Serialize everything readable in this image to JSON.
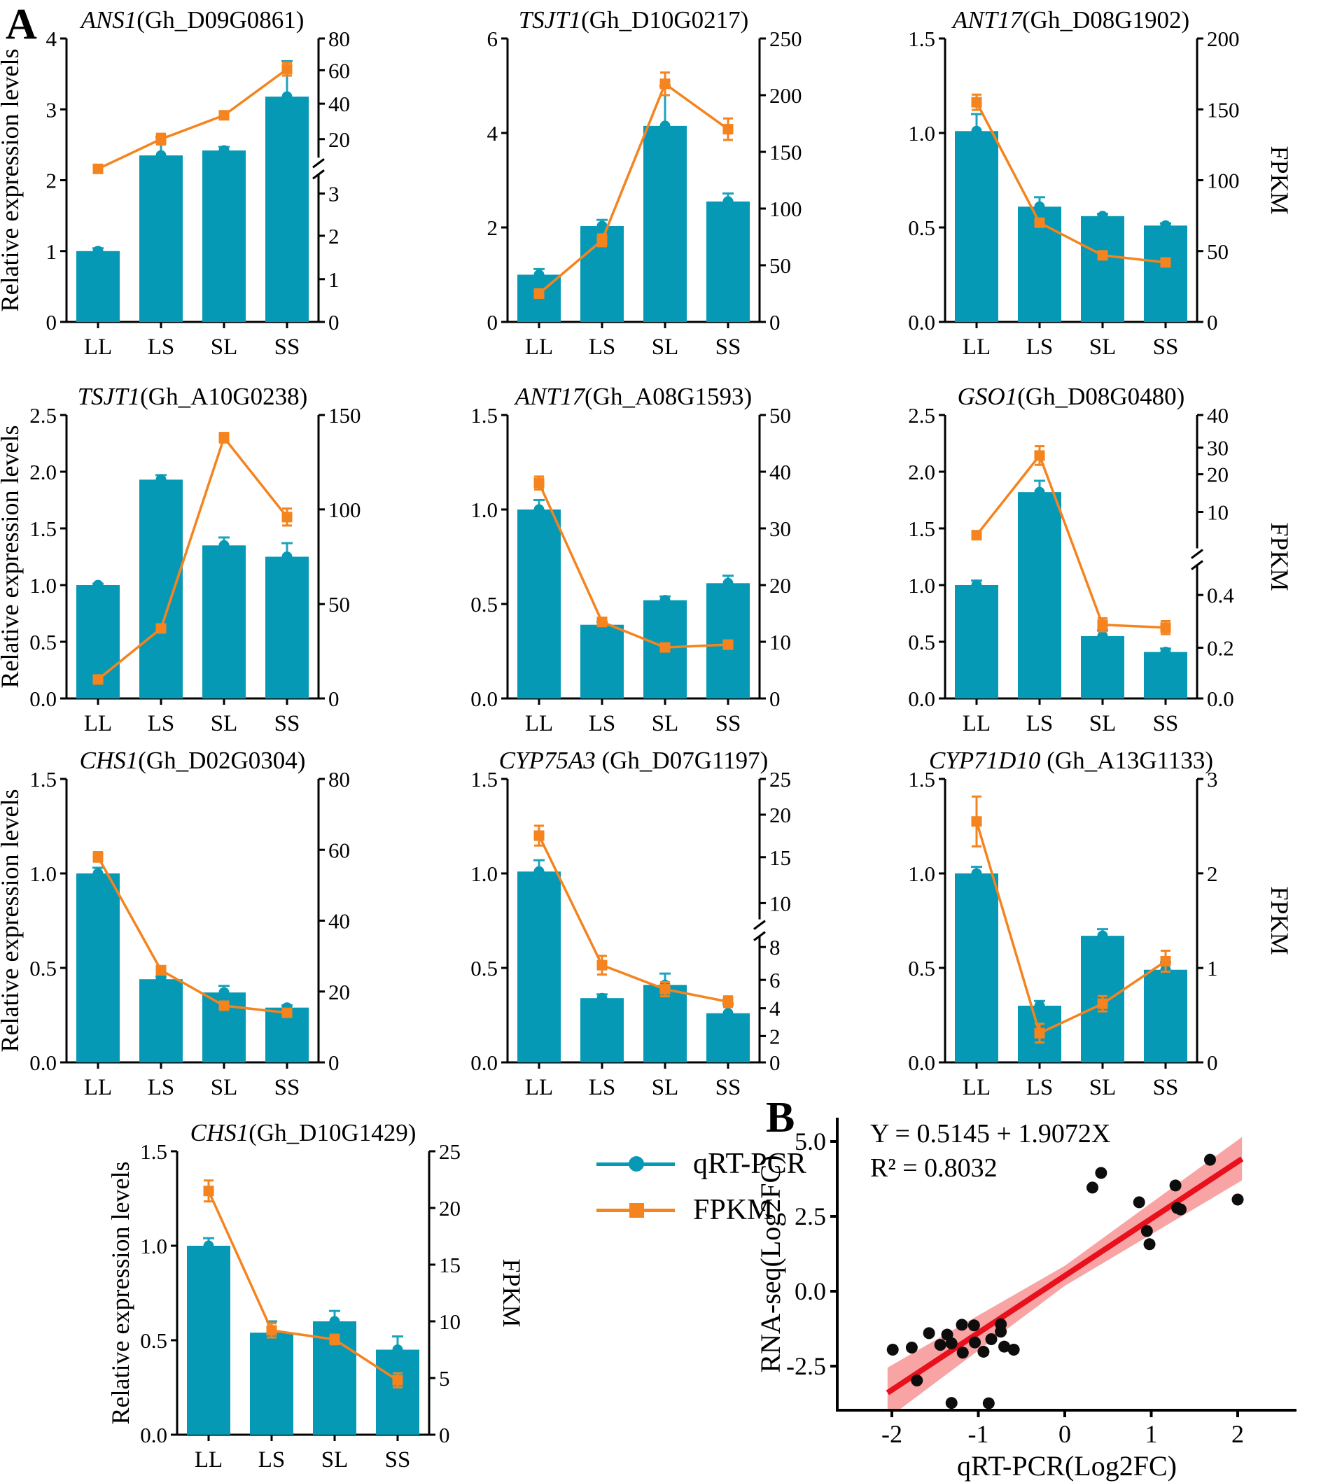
{
  "panel_a_label": "A",
  "panel_b_label": "B",
  "colors": {
    "bar": "#0699B5",
    "bar_error": "#1BA3BC",
    "line": "#F5831E",
    "regression_line": "#E8101C",
    "confidence_band": "#F8A4A4",
    "scatter_dot": "#0d0d0d",
    "axis": "#000000"
  },
  "x_categories": [
    "LL",
    "LS",
    "SL",
    "SS"
  ],
  "axis_labels": {
    "left": "Relative expression levels",
    "right": "FPKM"
  },
  "legend": {
    "qrt_label": "qRT-PCR",
    "fpkm_label": "FPKM"
  },
  "chart_data": [
    {
      "type": "bar-line",
      "id": "ans1-gh-d09g0861",
      "gene": "ANS1",
      "locus": "(Gh_D09G0861)",
      "space": false,
      "show_left_label": true,
      "show_right_label": false,
      "left_axis": {
        "ticks": [
          "0",
          "1",
          "2",
          "3",
          "4"
        ],
        "max": 4
      },
      "right_axis": {
        "ticks": [
          [
            "0",
            0
          ],
          [
            "1",
            0.151
          ],
          [
            "2",
            0.304
          ],
          [
            "3",
            0.453
          ],
          [
            "20",
            0.645
          ],
          [
            "40",
            0.77
          ],
          [
            "60",
            0.888
          ],
          [
            "80",
            1.0
          ]
        ],
        "break_frac": 0.55
      },
      "bars": [
        1.0,
        2.35,
        2.42,
        3.18
      ],
      "bar_errors": [
        0.04,
        0.26,
        0.05,
        0.5
      ],
      "fpkm": [
        10,
        20,
        33,
        60
      ],
      "fpkm_fracs": [
        0.54,
        0.645,
        0.729,
        0.892
      ],
      "fpkm_err_fracs": [
        0.008,
        0.014,
        0.008,
        0.018
      ]
    },
    {
      "type": "bar-line",
      "id": "tsjt1-gh-d10g0217",
      "gene": "TSJT1",
      "locus": "(Gh_D10G0217)",
      "space": false,
      "show_left_label": false,
      "show_right_label": false,
      "left_axis": {
        "ticks": [
          "0",
          "2",
          "4",
          "6"
        ],
        "max": 6
      },
      "right_axis": {
        "ticks": [
          [
            "0",
            0
          ],
          [
            "50",
            0.2
          ],
          [
            "100",
            0.4
          ],
          [
            "150",
            0.6
          ],
          [
            "200",
            0.8
          ],
          [
            "250",
            1.0
          ]
        ],
        "break_frac": null
      },
      "bars": [
        1.0,
        2.03,
        4.15,
        2.55
      ],
      "bar_errors": [
        0.12,
        0.13,
        0.85,
        0.17
      ],
      "fpkm": [
        25,
        72,
        210,
        170
      ],
      "fpkm_fracs": [
        0.1,
        0.288,
        0.84,
        0.68
      ],
      "fpkm_err_fracs": [
        0.01,
        0.016,
        0.035,
        0.033
      ]
    },
    {
      "type": "bar-line",
      "id": "ant17-gh-d08g1902",
      "gene": "ANT17",
      "locus": "(Gh_D08G1902)",
      "space": false,
      "show_left_label": false,
      "show_right_label": true,
      "left_axis": {
        "ticks": [
          "0.0",
          "0.5",
          "1.0",
          "1.5"
        ],
        "max": 1.5
      },
      "right_axis": {
        "ticks": [
          [
            "0",
            0
          ],
          [
            "50",
            0.25
          ],
          [
            "100",
            0.5
          ],
          [
            "150",
            0.75
          ],
          [
            "200",
            1.0
          ]
        ],
        "break_frac": null
      },
      "bars": [
        1.01,
        0.61,
        0.56,
        0.51
      ],
      "bar_errors": [
        0.09,
        0.05,
        0.012,
        0.012
      ],
      "fpkm": [
        155,
        70,
        47,
        42
      ],
      "fpkm_fracs": [
        0.775,
        0.35,
        0.235,
        0.21
      ],
      "fpkm_err_fracs": [
        0.022,
        0.008,
        0.006,
        0.006
      ]
    },
    {
      "type": "bar-line",
      "id": "tsjt1-gh-a10g0238",
      "gene": "TSJT1",
      "locus": "(Gh_A10G0238)",
      "space": false,
      "show_left_label": true,
      "show_right_label": false,
      "left_axis": {
        "ticks": [
          "0.0",
          "0.5",
          "1.0",
          "1.5",
          "2.0",
          "2.5"
        ],
        "max": 2.5
      },
      "right_axis": {
        "ticks": [
          [
            "0",
            0
          ],
          [
            "50",
            0.333
          ],
          [
            "100",
            0.667
          ],
          [
            "150",
            1.0
          ]
        ],
        "break_frac": null
      },
      "bars": [
        1.0,
        1.93,
        1.35,
        1.25
      ],
      "bar_errors": [
        0.012,
        0.04,
        0.07,
        0.12
      ],
      "fpkm": [
        10,
        37,
        138,
        96
      ],
      "fpkm_fracs": [
        0.067,
        0.247,
        0.92,
        0.64
      ],
      "fpkm_err_fracs": [
        0.008,
        0.008,
        0.012,
        0.025
      ]
    },
    {
      "type": "bar-line",
      "id": "ant17-gh-a08g1593",
      "gene": "ANT17",
      "locus": "(Gh_A08G1593)",
      "space": false,
      "show_left_label": false,
      "show_right_label": false,
      "left_axis": {
        "ticks": [
          "0.0",
          "0.5",
          "1.0",
          "1.5"
        ],
        "max": 1.5
      },
      "right_axis": {
        "ticks": [
          [
            "0",
            0
          ],
          [
            "10",
            0.2
          ],
          [
            "20",
            0.4
          ],
          [
            "30",
            0.6
          ],
          [
            "40",
            0.8
          ],
          [
            "50",
            1.0
          ]
        ],
        "break_frac": null
      },
      "bars": [
        1.0,
        0.39,
        0.52,
        0.61
      ],
      "bar_errors": [
        0.05,
        0.015,
        0.02,
        0.04
      ],
      "fpkm": [
        38,
        13.5,
        9,
        9.5
      ],
      "fpkm_fracs": [
        0.76,
        0.27,
        0.18,
        0.19
      ],
      "fpkm_err_fracs": [
        0.018,
        0.01,
        0.006,
        0.008
      ]
    },
    {
      "type": "bar-line",
      "id": "gso1-gh-d08g0480",
      "gene": "GSO1",
      "locus": "(Gh_D08G0480)",
      "space": false,
      "show_left_label": false,
      "show_right_label": true,
      "left_axis": {
        "ticks": [
          "0.0",
          "0.5",
          "1.0",
          "1.5",
          "2.0",
          "2.5"
        ],
        "max": 2.5
      },
      "right_axis": {
        "ticks": [
          [
            "0.0",
            0
          ],
          [
            "0.2",
            0.179
          ],
          [
            "0.4",
            0.365
          ],
          [
            "10",
            0.658
          ],
          [
            "20",
            0.791
          ],
          [
            "30",
            0.885
          ],
          [
            "40",
            1.0
          ]
        ],
        "break_frac": 0.5
      },
      "bars": [
        1.0,
        1.82,
        0.55,
        0.41
      ],
      "bar_errors": [
        0.04,
        0.1,
        0.05,
        0.03
      ],
      "fpkm": [
        4,
        27,
        0.28,
        0.27
      ],
      "fpkm_fracs": [
        0.576,
        0.857,
        0.26,
        0.25
      ],
      "fpkm_err_fracs": [
        0.006,
        0.028,
        0.018,
        0.018
      ]
    },
    {
      "type": "bar-line",
      "id": "chs1-gh-d02g0304",
      "gene": "CHS1",
      "locus": "(Gh_D02G0304)",
      "space": false,
      "show_left_label": true,
      "show_right_label": false,
      "left_axis": {
        "ticks": [
          "0.0",
          "0.5",
          "1.0",
          "1.5"
        ],
        "max": 1.5
      },
      "right_axis": {
        "ticks": [
          [
            "0",
            0
          ],
          [
            "20",
            0.25
          ],
          [
            "40",
            0.5
          ],
          [
            "60",
            0.75
          ],
          [
            "80",
            1.0
          ]
        ],
        "break_frac": null
      },
      "bars": [
        1.0,
        0.44,
        0.37,
        0.29
      ],
      "bar_errors": [
        0.03,
        0.015,
        0.035,
        0.012
      ],
      "fpkm": [
        58,
        26,
        16,
        14
      ],
      "fpkm_fracs": [
        0.725,
        0.325,
        0.2,
        0.175
      ],
      "fpkm_err_fracs": [
        0.012,
        0.01,
        0.008,
        0.008
      ]
    },
    {
      "type": "bar-line",
      "id": "cyp75a3-gh-d07g1197",
      "gene": "CYP75A3",
      "locus": "(Gh_D07G1197)",
      "space": true,
      "show_left_label": false,
      "show_right_label": false,
      "left_axis": {
        "ticks": [
          "0.0",
          "0.5",
          "1.0",
          "1.5"
        ],
        "max": 1.5
      },
      "right_axis": {
        "ticks": [
          [
            "0",
            0
          ],
          [
            "2",
            0.093
          ],
          [
            "4",
            0.191
          ],
          [
            "6",
            0.291
          ],
          [
            "8",
            0.407
          ],
          [
            "10",
            0.562
          ],
          [
            "15",
            0.724
          ],
          [
            "20",
            0.874
          ],
          [
            "25",
            1.0
          ]
        ],
        "break_frac": 0.475
      },
      "bars": [
        1.01,
        0.34,
        0.41,
        0.26
      ],
      "bar_errors": [
        0.06,
        0.02,
        0.06,
        0.05
      ],
      "fpkm": [
        18.5,
        6.4,
        5.0,
        4.4
      ],
      "fpkm_fracs": [
        0.8,
        0.343,
        0.258,
        0.214
      ],
      "fpkm_err_fracs": [
        0.03,
        0.028,
        0.02,
        0.014
      ]
    },
    {
      "type": "bar-line",
      "id": "cyp71d10-gh-a13g1133",
      "gene": "CYP71D10",
      "locus": "(Gh_A13G1133)",
      "space": true,
      "show_left_label": false,
      "show_right_label": true,
      "left_axis": {
        "ticks": [
          "0.0",
          "0.5",
          "1.0",
          "1.5"
        ],
        "max": 1.5
      },
      "right_axis": {
        "ticks": [
          [
            "0",
            0
          ],
          [
            "1",
            0.333
          ],
          [
            "2",
            0.667
          ],
          [
            "3",
            1.0
          ]
        ],
        "break_frac": null
      },
      "bars": [
        1.0,
        0.3,
        0.67,
        0.49
      ],
      "bar_errors": [
        0.035,
        0.025,
        0.035,
        0.04
      ],
      "fpkm": [
        2.55,
        0.31,
        0.62,
        1.07
      ],
      "fpkm_fracs": [
        0.85,
        0.103,
        0.207,
        0.357
      ],
      "fpkm_err_fracs": [
        0.083,
        0.028,
        0.022,
        0.032
      ]
    },
    {
      "type": "bar-line",
      "id": "chs1-gh-d10g1429",
      "gene": "CHS1",
      "locus": "(Gh_D10G1429)",
      "space": false,
      "show_left_label": true,
      "show_right_label": true,
      "left_axis": {
        "ticks": [
          "0.0",
          "0.5",
          "1.0",
          "1.5"
        ],
        "max": 1.5
      },
      "right_axis": {
        "ticks": [
          [
            "0",
            0
          ],
          [
            "5",
            0.2
          ],
          [
            "10",
            0.4
          ],
          [
            "15",
            0.6
          ],
          [
            "20",
            0.8
          ],
          [
            "25",
            1.0
          ]
        ],
        "break_frac": null
      },
      "bars": [
        1.0,
        0.54,
        0.6,
        0.45
      ],
      "bar_errors": [
        0.04,
        0.06,
        0.055,
        0.07
      ],
      "fpkm": [
        21.5,
        9.2,
        8.4,
        4.8
      ],
      "fpkm_fracs": [
        0.86,
        0.368,
        0.336,
        0.192
      ],
      "fpkm_err_fracs": [
        0.032,
        0.02,
        0.012,
        0.02
      ]
    },
    {
      "type": "scatter",
      "id": "rna-seq-correlation",
      "xlabel": "qRT-PCR(Log2FC)",
      "ylabel": "RNA-seq(Log2FC)",
      "equation": "Y = 0.5145 + 1.9072X",
      "r_squared": "R² = 0.8032",
      "x_ticks": [
        [
          "-2",
          -2
        ],
        [
          "-1",
          -1
        ],
        [
          "0",
          0
        ],
        [
          "1",
          1
        ],
        [
          "2",
          2
        ]
      ],
      "y_ticks": [
        [
          "5.0",
          5.0
        ],
        [
          "2.5",
          2.5
        ],
        [
          "0.0",
          0.0
        ],
        [
          "-2.5",
          -2.5
        ]
      ],
      "xlim": [
        -2.3,
        2.35
      ],
      "ylim": [
        -4.0,
        5.8
      ],
      "regression": {
        "x1": -2.05,
        "y1": -3.39,
        "x2": 2.05,
        "y2": 4.42
      },
      "band": [
        [
          -2.05,
          -2.55
        ],
        [
          0,
          0.85
        ],
        [
          2.05,
          5.15
        ],
        [
          2.05,
          3.7
        ],
        [
          0,
          0.18
        ],
        [
          -2.05,
          -4.25
        ]
      ],
      "points": [
        [
          -1.99,
          -1.95
        ],
        [
          -1.77,
          -1.88
        ],
        [
          -1.71,
          -2.98
        ],
        [
          -1.57,
          -1.4
        ],
        [
          -1.44,
          -1.79
        ],
        [
          -1.36,
          -1.45
        ],
        [
          -1.31,
          -1.74
        ],
        [
          -1.31,
          -3.73
        ],
        [
          -1.19,
          -1.12
        ],
        [
          -1.18,
          -2.05
        ],
        [
          -1.05,
          -1.14
        ],
        [
          -1.04,
          -1.71
        ],
        [
          -0.94,
          -2.02
        ],
        [
          -0.88,
          -3.74
        ],
        [
          -0.85,
          -1.6
        ],
        [
          -0.74,
          -1.1
        ],
        [
          -0.74,
          -1.35
        ],
        [
          -0.7,
          -1.85
        ],
        [
          -0.59,
          -1.95
        ],
        [
          0.32,
          3.46
        ],
        [
          0.42,
          3.95
        ],
        [
          0.86,
          2.97
        ],
        [
          0.95,
          2.01
        ],
        [
          0.98,
          1.57
        ],
        [
          1.28,
          3.53
        ],
        [
          1.3,
          2.78
        ],
        [
          1.34,
          2.73
        ],
        [
          1.68,
          4.39
        ],
        [
          2.0,
          3.06
        ]
      ]
    }
  ]
}
